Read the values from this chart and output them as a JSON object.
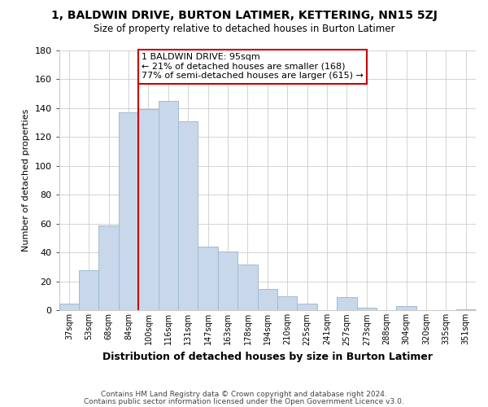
{
  "title": "1, BALDWIN DRIVE, BURTON LATIMER, KETTERING, NN15 5ZJ",
  "subtitle": "Size of property relative to detached houses in Burton Latimer",
  "xlabel": "Distribution of detached houses by size in Burton Latimer",
  "ylabel": "Number of detached properties",
  "categories": [
    "37sqm",
    "53sqm",
    "68sqm",
    "84sqm",
    "100sqm",
    "116sqm",
    "131sqm",
    "147sqm",
    "163sqm",
    "178sqm",
    "194sqm",
    "210sqm",
    "225sqm",
    "241sqm",
    "257sqm",
    "273sqm",
    "288sqm",
    "304sqm",
    "320sqm",
    "335sqm",
    "351sqm"
  ],
  "values": [
    5,
    28,
    59,
    137,
    139,
    145,
    131,
    44,
    41,
    32,
    15,
    10,
    5,
    0,
    9,
    2,
    0,
    3,
    0,
    0,
    1
  ],
  "bar_color": "#c8d8ea",
  "bar_edge_color": "#a0bcd0",
  "vline_x_index": 4,
  "vline_color": "#cc0000",
  "annotation_title": "1 BALDWIN DRIVE: 95sqm",
  "annotation_line1": "← 21% of detached houses are smaller (168)",
  "annotation_line2": "77% of semi-detached houses are larger (615) →",
  "annotation_box_edge": "#cc0000",
  "ylim": [
    0,
    180
  ],
  "yticks": [
    0,
    20,
    40,
    60,
    80,
    100,
    120,
    140,
    160,
    180
  ],
  "footer1": "Contains HM Land Registry data © Crown copyright and database right 2024.",
  "footer2": "Contains public sector information licensed under the Open Government Licence v3.0.",
  "background_color": "#ffffff",
  "grid_color": "#cccccc"
}
